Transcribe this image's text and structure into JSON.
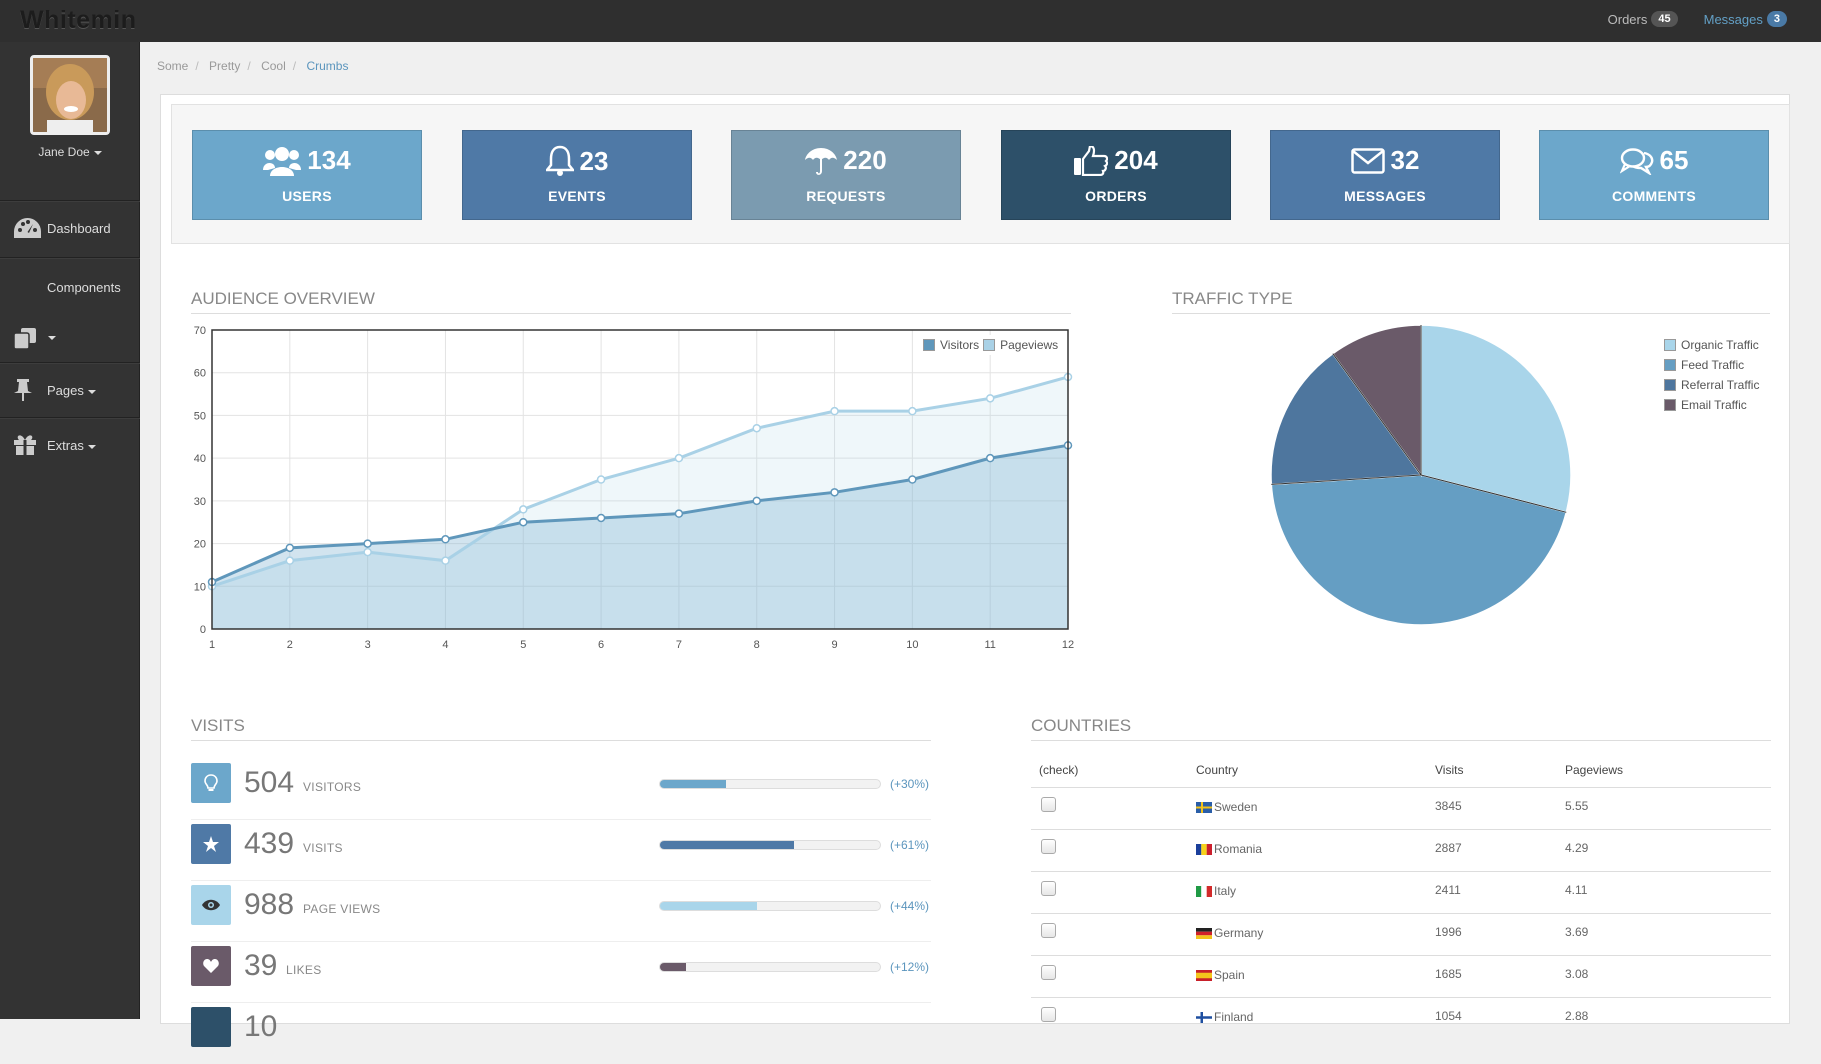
{
  "app": {
    "title": "Whitemin"
  },
  "topnav": {
    "orders_label": "Orders",
    "orders_count": "45",
    "messages_label": "Messages",
    "messages_count": "3"
  },
  "user": {
    "name": "Jane Doe"
  },
  "sidebar": {
    "items": [
      {
        "label": "Dashboard"
      },
      {
        "label": "Components"
      },
      {
        "label": "Pages"
      },
      {
        "label": "Extras"
      }
    ]
  },
  "breadcrumb": [
    "Some",
    "Pretty",
    "Cool",
    "Crumbs"
  ],
  "stats": [
    {
      "value": "134",
      "label": "USERS",
      "color": "#6ca7cb"
    },
    {
      "value": "23",
      "label": "EVENTS",
      "color": "#4f79a6"
    },
    {
      "value": "220",
      "label": "REQUESTS",
      "color": "#7b9bb0"
    },
    {
      "value": "204",
      "label": "ORDERS",
      "color": "#2d5069"
    },
    {
      "value": "32",
      "label": "MESSAGES",
      "color": "#4f79a6"
    },
    {
      "value": "65",
      "label": "COMMENTS",
      "color": "#6ca7cb"
    }
  ],
  "audience": {
    "title": "AUDIENCE OVERVIEW"
  },
  "traffic": {
    "title": "TRAFFIC TYPE"
  },
  "chart_data": [
    {
      "type": "area",
      "title": "AUDIENCE OVERVIEW",
      "x": [
        1,
        2,
        3,
        4,
        5,
        6,
        7,
        8,
        9,
        10,
        11,
        12
      ],
      "ylim": [
        0,
        70
      ],
      "yticks": [
        0,
        10,
        20,
        30,
        40,
        50,
        60,
        70
      ],
      "series": [
        {
          "name": "Visitors",
          "values": [
            11,
            19,
            20,
            21,
            25,
            26,
            27,
            30,
            32,
            35,
            40,
            43
          ],
          "color": "#5f97bb"
        },
        {
          "name": "Pageviews",
          "values": [
            10,
            16,
            18,
            16,
            28,
            35,
            40,
            47,
            51,
            51,
            54,
            59
          ],
          "color": "#a9d1e6"
        }
      ],
      "legend": "top-right"
    },
    {
      "type": "pie",
      "title": "TRAFFIC TYPE",
      "series": [
        {
          "name": "Organic Traffic",
          "value": 29,
          "color": "#a9d5ea"
        },
        {
          "name": "Feed Traffic",
          "value": 45,
          "color": "#659ec3"
        },
        {
          "name": "Referral Traffic",
          "value": 16,
          "color": "#4e769e"
        },
        {
          "name": "Email Traffic",
          "value": 10,
          "color": "#6a5a69"
        }
      ],
      "legend": "top-right"
    }
  ],
  "visits": {
    "title": "VISITS",
    "rows": [
      {
        "value": "504",
        "label": "VISITORS",
        "pct": "(+30%)",
        "fill": 30,
        "color": "#6ca7cb",
        "icon": "lightbulb-icon"
      },
      {
        "value": "439",
        "label": "VISITS",
        "pct": "(+61%)",
        "fill": 61,
        "color": "#4f79a6",
        "icon": "star-icon"
      },
      {
        "value": "988",
        "label": "PAGE VIEWS",
        "pct": "(+44%)",
        "fill": 44,
        "color": "#a9d5ea",
        "icon": "eye-icon"
      },
      {
        "value": "39",
        "label": "LIKES",
        "pct": "(+12%)",
        "fill": 12,
        "color": "#6a5a69",
        "icon": "heart-icon"
      },
      {
        "value": "10",
        "label": "",
        "pct": "",
        "fill": 0,
        "color": "#2d5069",
        "icon": "partial-icon"
      }
    ]
  },
  "countries": {
    "title": "COUNTRIES",
    "headers": [
      "(check)",
      "Country",
      "Visits",
      "Pageviews"
    ],
    "rows": [
      {
        "country": "Sweden",
        "visits": "3845",
        "pageviews": "5.55"
      },
      {
        "country": "Romania",
        "visits": "2887",
        "pageviews": "4.29"
      },
      {
        "country": "Italy",
        "visits": "2411",
        "pageviews": "4.11"
      },
      {
        "country": "Germany",
        "visits": "1996",
        "pageviews": "3.69"
      },
      {
        "country": "Spain",
        "visits": "1685",
        "pageviews": "3.08"
      },
      {
        "country": "Finland",
        "visits": "1054",
        "pageviews": "2.88"
      }
    ]
  }
}
